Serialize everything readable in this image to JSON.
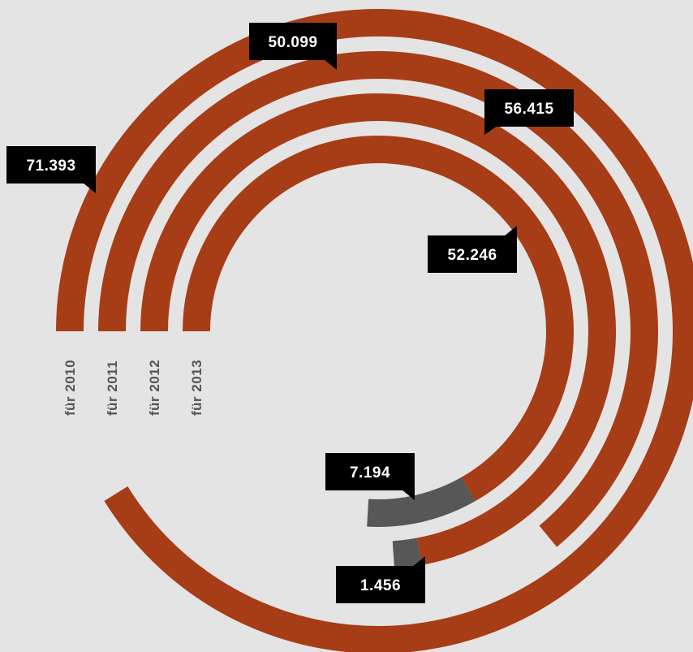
{
  "chart_data": {
    "type": "radial-bar",
    "title": "",
    "scale_note": "",
    "colors": {
      "main": "#a63d17",
      "secondary": "#575757",
      "label_bg": "#000000",
      "label_text": "#ffffff",
      "category_text": "#555555",
      "background": "#e4e4e4"
    },
    "full_circle_value": 78300,
    "series": [
      {
        "category": "für 2010",
        "value": 71393,
        "label": "71.393"
      },
      {
        "category": "für 2011",
        "value": 50099,
        "label": "50.099",
        "secondary_value": 0,
        "secondary_label": ""
      },
      {
        "category": "für 2012",
        "value": 56415,
        "label": "56.415",
        "secondary_value": 1456,
        "secondary_label": "1.456"
      },
      {
        "category": "für 2013",
        "value": 52246,
        "label": "52.246",
        "secondary_value": 7194,
        "secondary_label": "7.194"
      }
    ]
  }
}
